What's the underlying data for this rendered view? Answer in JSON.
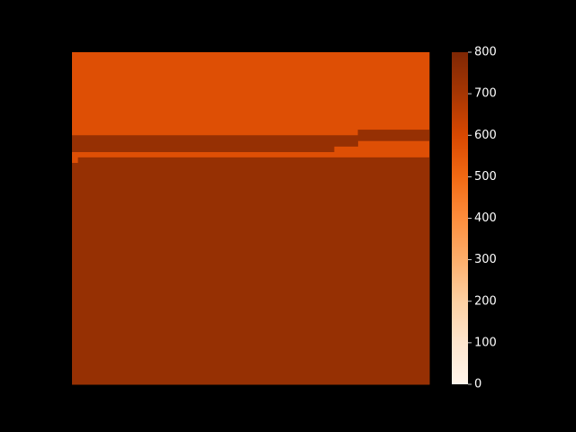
{
  "chart_data": {
    "type": "heatmap",
    "title": "",
    "xlabel": "",
    "ylabel": "",
    "colormap": "Oranges",
    "colormap_stops": [
      "#fff5eb",
      "#fee6ce",
      "#fdd0a2",
      "#fdae6b",
      "#fd8d3c",
      "#f16913",
      "#d94801",
      "#a63603",
      "#7f2704"
    ],
    "background": "#000000",
    "vmin": 0,
    "vmax": 800,
    "colorbar": {
      "ticks": [
        0,
        100,
        200,
        300,
        400,
        500,
        600,
        700,
        800
      ],
      "tick_labels": [
        "0",
        "100",
        "200",
        "300",
        "400",
        "500",
        "600",
        "700",
        "800"
      ]
    },
    "grid": false,
    "rows": 60,
    "cols": 60,
    "regions": [
      {
        "value": 580,
        "row_start": 0,
        "row_end": 60,
        "col_start": 0,
        "col_end": 60
      },
      {
        "value": 740,
        "row_start": 14,
        "row_end": 16,
        "col_start": 48,
        "col_end": 60
      },
      {
        "value": 740,
        "row_start": 15,
        "row_end": 17,
        "col_start": 0,
        "col_end": 48
      },
      {
        "value": 740,
        "row_start": 17,
        "row_end": 18,
        "col_start": 0,
        "col_end": 44
      },
      {
        "value": 740,
        "row_start": 19,
        "row_end": 20,
        "col_start": 1,
        "col_end": 60
      },
      {
        "value": 740,
        "row_start": 20,
        "row_end": 60,
        "col_start": 0,
        "col_end": 60
      }
    ]
  }
}
